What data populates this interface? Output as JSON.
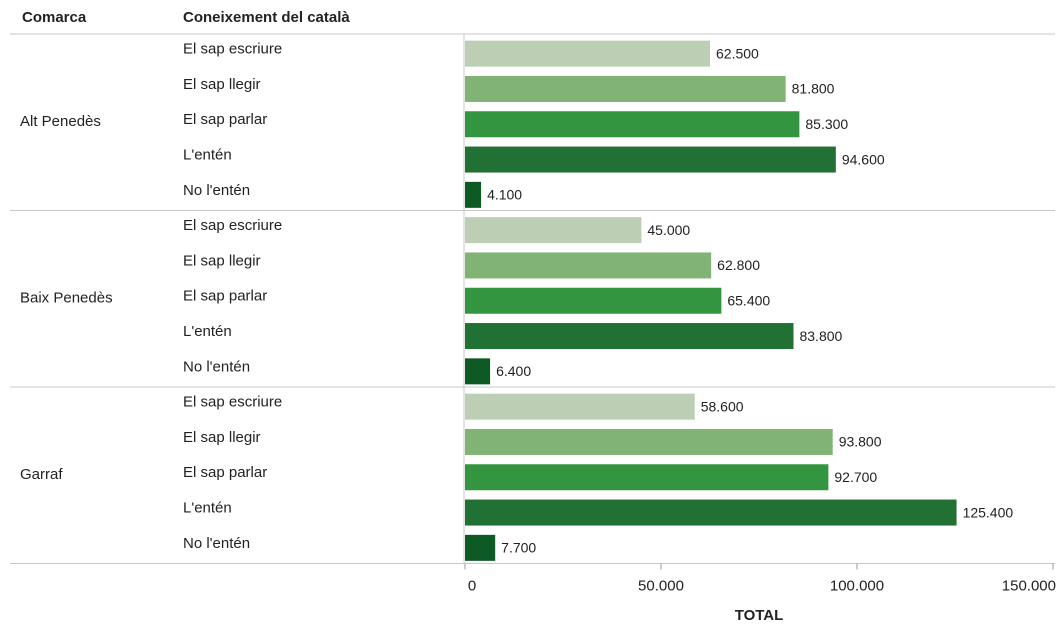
{
  "chart_data": {
    "type": "bar",
    "orientation": "horizontal",
    "row_headers": [
      "Comarca",
      "Coneixement del català"
    ],
    "x_label": "TOTAL",
    "colors": [
      "#bccfb4",
      "#80b374",
      "#33953f",
      "#217135",
      "#0e5a25"
    ],
    "groups": [
      {
        "name": "Alt Penedès",
        "categories": [
          "El sap escriure",
          "El sap llegir",
          "El sap parlar",
          "L'entén",
          "No l'entén"
        ],
        "values": [
          62500,
          81800,
          85300,
          94600,
          4100
        ],
        "value_labels": [
          "62.500",
          "81.800",
          "85.300",
          "94.600",
          "4.100"
        ]
      },
      {
        "name": "Baix Penedès",
        "categories": [
          "El sap escriure",
          "El sap llegir",
          "El sap parlar",
          "L'entén",
          "No l'entén"
        ],
        "values": [
          45000,
          62800,
          65400,
          83800,
          6400
        ],
        "value_labels": [
          "45.000",
          "62.800",
          "65.400",
          "83.800",
          "6.400"
        ]
      },
      {
        "name": "Garraf",
        "categories": [
          "El sap escriure",
          "El sap llegir",
          "El sap parlar",
          "L'entén",
          "No l'entén"
        ],
        "values": [
          58600,
          93800,
          92700,
          125400,
          7700
        ],
        "value_labels": [
          "58.600",
          "93.800",
          "92.700",
          "125.400",
          "7.700"
        ]
      }
    ],
    "xlim": [
      0,
      150000
    ],
    "xticks": [
      0,
      {
        "value": 50000,
        "label": "50.000"
      },
      {
        "value": 100000,
        "label": "100.000"
      },
      {
        "value": 150000,
        "label": "150.000"
      }
    ]
  }
}
